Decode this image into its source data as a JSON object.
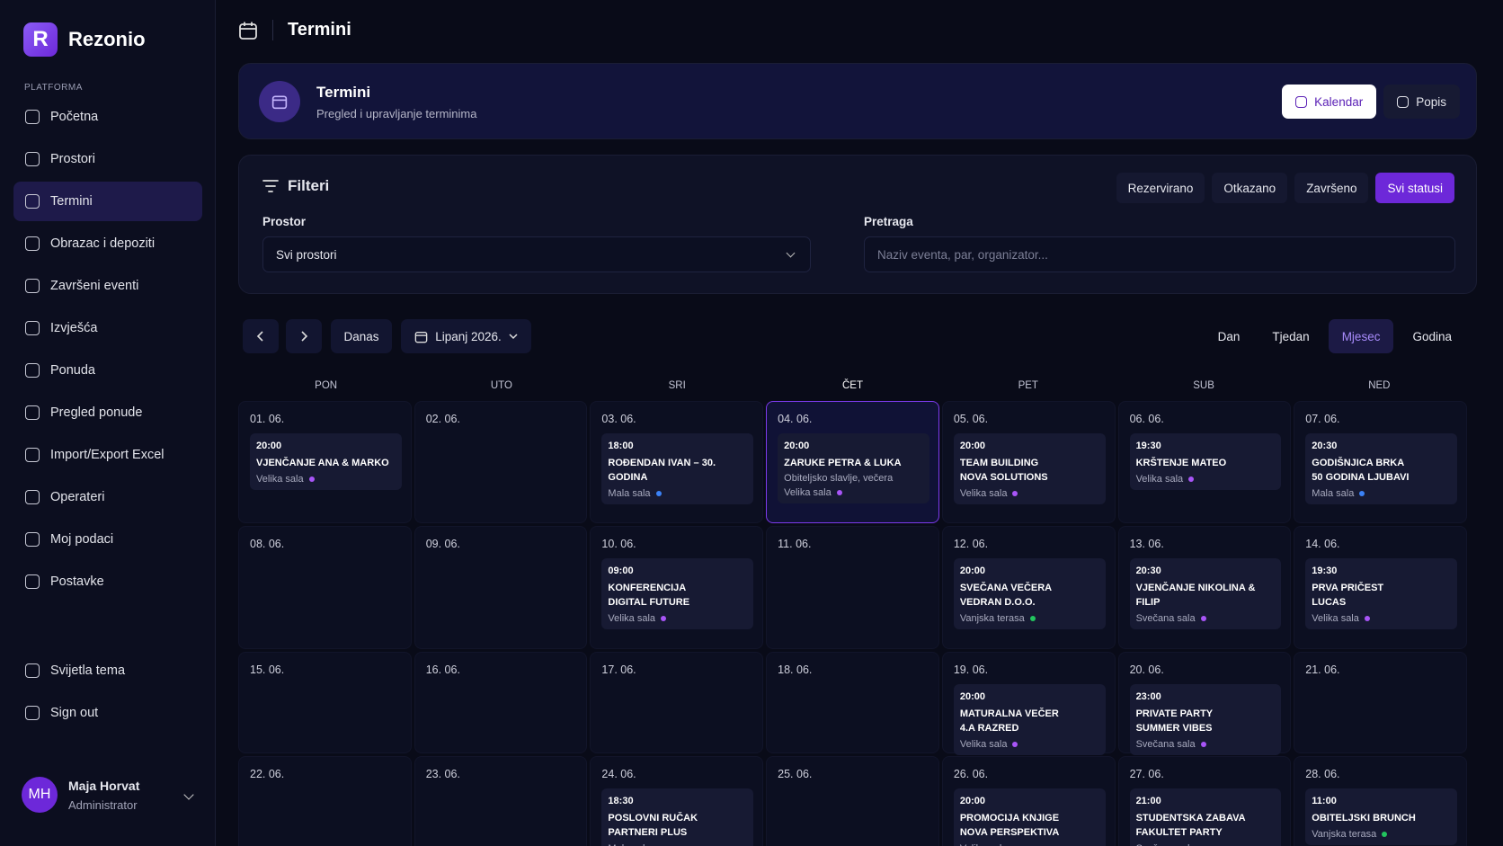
{
  "brand": "Rezonio",
  "logo_letter": "R",
  "sidebar": {
    "section": "PLATFORMA",
    "active": 2,
    "items": [
      "Početna",
      "Prostori",
      "Termini",
      "Obrazac i depoziti",
      "Završeni eventi",
      "Izvješća",
      "Ponuda",
      "Pregled ponude",
      "Import/Export Excel",
      "Operateri",
      "Moj podaci",
      "Postavke"
    ],
    "bottom": [
      "Svijetla tema",
      "Sign out"
    ],
    "user": {
      "initials": "MH",
      "name": "Maja Horvat",
      "role": "Administrator"
    }
  },
  "topbar": {
    "title": "Termini"
  },
  "header": {
    "title": "Termini",
    "subtitle": "Pregled i upravljanje terminima",
    "views": [
      "Kalendar",
      "Popis"
    ],
    "active_view": 0
  },
  "filters": {
    "title": "Filteri",
    "statuses": [
      "Rezervirano",
      "Otkazano",
      "Završeno",
      "Svi statusi"
    ],
    "active_status": 3,
    "space_label": "Prostor",
    "space_value": "Svi prostori",
    "search_label": "Pretraga",
    "search_placeholder": "Naziv eventa, par, organizator..."
  },
  "calendar": {
    "today": "Danas",
    "month": "Lipanj 2026.",
    "views": [
      "Dan",
      "Tjedan",
      "Mjesec",
      "Godina"
    ],
    "active_view": 2,
    "weekdays": [
      "PON",
      "UTO",
      "SRI",
      "ČET",
      "PET",
      "SUB",
      "NED"
    ],
    "highlight_weekday": 3,
    "weeks": [
      [
        {
          "date": "01. 06.",
          "events": [
            {
              "time": "20:00",
              "lines": [
                "VJENČANJE ANA & MARKO"
              ],
              "room": "Velika sala",
              "color": "#a855f7"
            }
          ]
        },
        {
          "date": "02. 06.",
          "events": []
        },
        {
          "date": "03. 06.",
          "events": [
            {
              "time": "18:00",
              "lines": [
                "ROĐENDAN IVAN – 30. GODINA"
              ],
              "room": "Mala sala",
              "color": "#3b82f6"
            }
          ]
        },
        {
          "date": "04. 06.",
          "selected": true,
          "events": [
            {
              "time": "20:00",
              "lines": [
                "ZARUKE PETRA & LUKA"
              ],
              "note": "Obiteljsko slavlje, večera",
              "room": "Velika sala",
              "color": "#a855f7"
            }
          ]
        },
        {
          "date": "05. 06.",
          "events": [
            {
              "time": "20:00",
              "lines": [
                "TEAM BUILDING",
                "NOVA SOLUTIONS"
              ],
              "room": "Velika sala",
              "color": "#a855f7"
            }
          ]
        },
        {
          "date": "06. 06.",
          "events": [
            {
              "time": "19:30",
              "lines": [
                "KRŠTENJE MATEO"
              ],
              "room": "Velika sala",
              "color": "#a855f7"
            }
          ]
        },
        {
          "date": "07. 06.",
          "events": [
            {
              "time": "20:30",
              "lines": [
                "GODIŠNJICA BRKA",
                "50 GODINA LJUBAVI"
              ],
              "room": "Mala sala",
              "color": "#3b82f6"
            }
          ]
        }
      ],
      [
        {
          "date": "08. 06.",
          "events": []
        },
        {
          "date": "09. 06.",
          "events": []
        },
        {
          "date": "10. 06.",
          "events": [
            {
              "time": "09:00",
              "lines": [
                "KONFERENCIJA",
                "DIGITAL FUTURE"
              ],
              "room": "Velika sala",
              "color": "#a855f7"
            }
          ]
        },
        {
          "date": "11. 06.",
          "events": []
        },
        {
          "date": "12. 06.",
          "events": [
            {
              "time": "20:00",
              "lines": [
                "SVEČANA VEČERA",
                "VEDRAN D.O.O."
              ],
              "room": "Vanjska terasa",
              "color": "#22c55e"
            }
          ]
        },
        {
          "date": "13. 06.",
          "events": [
            {
              "time": "20:30",
              "lines": [
                "VJENČANJE NIKOLINA & FILIP"
              ],
              "room": "Svečana sala",
              "color": "#a855f7"
            }
          ]
        },
        {
          "date": "14. 06.",
          "events": [
            {
              "time": "19:30",
              "lines": [
                "PRVA PRIČEST",
                "LUCAS"
              ],
              "room": "Velika sala",
              "color": "#a855f7"
            }
          ]
        }
      ],
      [
        {
          "date": "15. 06.",
          "events": []
        },
        {
          "date": "16. 06.",
          "events": []
        },
        {
          "date": "17. 06.",
          "events": []
        },
        {
          "date": "18. 06.",
          "events": []
        },
        {
          "date": "19. 06.",
          "events": [
            {
              "time": "20:00",
              "lines": [
                "MATURALNA VEČER",
                "4.A RAZRED"
              ],
              "room": "Velika sala",
              "color": "#a855f7"
            }
          ]
        },
        {
          "date": "20. 06.",
          "events": [
            {
              "time": "23:00",
              "lines": [
                "PRIVATE PARTY",
                "SUMMER VIBES"
              ],
              "room": "Svečana sala",
              "color": "#a855f7"
            }
          ]
        },
        {
          "date": "21. 06.",
          "events": []
        }
      ],
      [
        {
          "date": "22. 06.",
          "events": []
        },
        {
          "date": "23. 06.",
          "events": []
        },
        {
          "date": "24. 06.",
          "events": [
            {
              "time": "18:30",
              "lines": [
                "POSLOVNI RUČAK",
                "PARTNERI PLUS"
              ],
              "room": "Mala sala",
              "color": "#3b82f6"
            }
          ]
        },
        {
          "date": "25. 06.",
          "events": []
        },
        {
          "date": "26. 06.",
          "events": [
            {
              "time": "20:00",
              "lines": [
                "PROMOCIJA KNJIGE",
                "NOVA PERSPEKTIVA"
              ],
              "room": "Velika sala",
              "color": "#a855f7"
            }
          ]
        },
        {
          "date": "27. 06.",
          "events": [
            {
              "time": "21:00",
              "lines": [
                "STUDENTSKA ZABAVA",
                "FAKULTET PARTY"
              ],
              "room": "Svečana sala",
              "color": "#a855f7"
            }
          ]
        },
        {
          "date": "28. 06.",
          "events": [
            {
              "time": "11:00",
              "lines": [
                "OBITELJSKI BRUNCH"
              ],
              "room": "Vanjska terasa",
              "color": "#22c55e"
            }
          ]
        }
      ]
    ]
  }
}
